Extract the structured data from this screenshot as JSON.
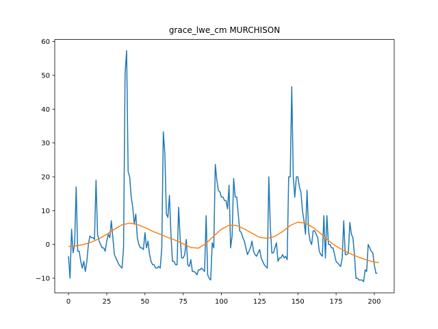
{
  "chart_data": {
    "type": "line",
    "title": "grace_lwe_cm MURCHISON",
    "xlabel": "",
    "ylabel": "",
    "xlim": [
      -9,
      213
    ],
    "ylim": [
      -14.3,
      60.6
    ],
    "x_ticks": [
      0,
      25,
      50,
      75,
      100,
      125,
      150,
      175,
      200
    ],
    "y_ticks": [
      -10,
      0,
      10,
      20,
      30,
      40,
      50,
      60
    ],
    "grid": false,
    "legend": "none",
    "series": [
      {
        "color": "#1f77b4",
        "points": [
          [
            0,
            -3.5
          ],
          [
            1,
            -10
          ],
          [
            2,
            4.5
          ],
          [
            3,
            -2.5
          ],
          [
            4,
            0
          ],
          [
            5,
            17
          ],
          [
            6,
            -2
          ],
          [
            7,
            -2
          ],
          [
            8,
            -5
          ],
          [
            9,
            -7
          ],
          [
            10,
            -5
          ],
          [
            11,
            -8
          ],
          [
            12,
            -5
          ],
          [
            13,
            0
          ],
          [
            14,
            2.5
          ],
          [
            15,
            2
          ],
          [
            16,
            2
          ],
          [
            17,
            1.5
          ],
          [
            18,
            19
          ],
          [
            19,
            3
          ],
          [
            20,
            1
          ],
          [
            21,
            0
          ],
          [
            22,
            -1
          ],
          [
            23,
            -1
          ],
          [
            24,
            -2
          ],
          [
            25,
            1
          ],
          [
            26,
            3
          ],
          [
            27,
            2
          ],
          [
            28,
            7
          ],
          [
            29,
            2
          ],
          [
            30,
            -3
          ],
          [
            31,
            -4
          ],
          [
            32,
            -5
          ],
          [
            33,
            -6
          ],
          [
            34,
            -6.5
          ],
          [
            35,
            -7
          ],
          [
            36,
            -1
          ],
          [
            37,
            50.5
          ],
          [
            38,
            57.3
          ],
          [
            39,
            21.5
          ],
          [
            40,
            20
          ],
          [
            41,
            14
          ],
          [
            42,
            11
          ],
          [
            43,
            6
          ],
          [
            44,
            9
          ],
          [
            45,
            2
          ],
          [
            46,
            0
          ],
          [
            47,
            -1
          ],
          [
            48,
            -1
          ],
          [
            49,
            -1.5
          ],
          [
            50,
            3.5
          ],
          [
            51,
            -1
          ],
          [
            52,
            1
          ],
          [
            53,
            -3
          ],
          [
            54,
            -5
          ],
          [
            55,
            -6
          ],
          [
            56,
            -6
          ],
          [
            57,
            -7
          ],
          [
            58,
            -7
          ],
          [
            59,
            -6.5
          ],
          [
            60,
            -7
          ],
          [
            61,
            -1
          ],
          [
            62,
            33.3
          ],
          [
            63,
            27
          ],
          [
            64,
            9
          ],
          [
            65,
            8
          ],
          [
            66,
            14.5
          ],
          [
            67,
            3
          ],
          [
            68,
            -5
          ],
          [
            69,
            -5
          ],
          [
            70,
            -6
          ],
          [
            71,
            -6
          ],
          [
            72,
            11
          ],
          [
            73,
            2
          ],
          [
            74,
            -4
          ],
          [
            75,
            -4
          ],
          [
            76,
            -3
          ],
          [
            77,
            1.5
          ],
          [
            78,
            -6
          ],
          [
            79,
            -6.5
          ],
          [
            80,
            -4.5
          ],
          [
            81,
            -8
          ],
          [
            82,
            -8
          ],
          [
            83,
            -8.3
          ],
          [
            84,
            -9
          ],
          [
            85,
            -7.5
          ],
          [
            86,
            -7.5
          ],
          [
            87,
            -7
          ],
          [
            88,
            -7.5
          ],
          [
            89,
            -8
          ],
          [
            90,
            8.5
          ],
          [
            91,
            -9
          ],
          [
            92,
            -10
          ],
          [
            93,
            -10.5
          ],
          [
            94,
            0.5
          ],
          [
            95,
            -1
          ],
          [
            96,
            23.7
          ],
          [
            97,
            19
          ],
          [
            98,
            16
          ],
          [
            99,
            15.5
          ],
          [
            100,
            14
          ],
          [
            101,
            14
          ],
          [
            102,
            13
          ],
          [
            103,
            13
          ],
          [
            104,
            10.5
          ],
          [
            105,
            17.5
          ],
          [
            106,
            -1
          ],
          [
            107,
            2.5
          ],
          [
            108,
            19.5
          ],
          [
            109,
            14
          ],
          [
            110,
            14
          ],
          [
            111,
            9
          ],
          [
            112,
            4
          ],
          [
            113,
            3.5
          ],
          [
            114,
            2
          ],
          [
            115,
            1
          ],
          [
            116,
            -1
          ],
          [
            117,
            -3
          ],
          [
            118,
            -2
          ],
          [
            119,
            -1
          ],
          [
            120,
            1
          ],
          [
            121,
            -2
          ],
          [
            122,
            -3
          ],
          [
            123,
            -3.5
          ],
          [
            124,
            -2.5
          ],
          [
            125,
            -1.5
          ],
          [
            126,
            -4
          ],
          [
            127,
            -5
          ],
          [
            128,
            -6
          ],
          [
            129,
            -6.5
          ],
          [
            130,
            -7
          ],
          [
            131,
            20
          ],
          [
            132,
            5
          ],
          [
            133,
            -2.5
          ],
          [
            134,
            -2.5
          ],
          [
            135,
            -1
          ],
          [
            136,
            0.5
          ],
          [
            137,
            -5
          ],
          [
            138,
            -4
          ],
          [
            139,
            -4
          ],
          [
            140,
            -3
          ],
          [
            141,
            -4
          ],
          [
            142,
            -3.5
          ],
          [
            143,
            -4.5
          ],
          [
            144,
            20
          ],
          [
            145,
            20
          ],
          [
            146,
            46.6
          ],
          [
            147,
            20
          ],
          [
            148,
            14
          ],
          [
            149,
            20
          ],
          [
            150,
            20
          ],
          [
            151,
            17
          ],
          [
            152,
            15.5
          ],
          [
            153,
            10
          ],
          [
            154,
            7
          ],
          [
            155,
            3
          ],
          [
            156,
            16
          ],
          [
            157,
            4
          ],
          [
            158,
            1
          ],
          [
            159,
            0
          ],
          [
            160,
            4
          ],
          [
            161,
            4
          ],
          [
            162,
            3
          ],
          [
            163,
            2
          ],
          [
            164,
            -2
          ],
          [
            165,
            -3
          ],
          [
            166,
            -3.5
          ],
          [
            167,
            8.5
          ],
          [
            168,
            -4
          ],
          [
            169,
            8.5
          ],
          [
            170,
            0
          ],
          [
            171,
            0
          ],
          [
            172,
            -1
          ],
          [
            173,
            -1
          ],
          [
            174,
            -3
          ],
          [
            175,
            -5
          ],
          [
            176,
            -5.5
          ],
          [
            177,
            -6
          ],
          [
            178,
            -6.5
          ],
          [
            179,
            -4
          ],
          [
            180,
            7
          ],
          [
            181,
            -3
          ],
          [
            182,
            -3
          ],
          [
            183,
            -2.5
          ],
          [
            184,
            6.5
          ],
          [
            185,
            3
          ],
          [
            186,
            2
          ],
          [
            187,
            -3
          ],
          [
            188,
            -10
          ],
          [
            189,
            -10
          ],
          [
            190,
            -10.5
          ],
          [
            191,
            -10.5
          ],
          [
            192,
            -10.5
          ],
          [
            193,
            -11
          ],
          [
            194,
            -7.5
          ],
          [
            195,
            -8
          ],
          [
            196,
            0
          ],
          [
            197,
            -1
          ],
          [
            198,
            -2
          ],
          [
            199,
            -2.5
          ],
          [
            200,
            -6
          ],
          [
            201,
            -8.5
          ],
          [
            202,
            -8.5
          ]
        ]
      },
      {
        "color": "#ff7f0e",
        "points": [
          [
            0,
            -0.6
          ],
          [
            5,
            -0.4
          ],
          [
            10,
            0
          ],
          [
            15,
            0.7
          ],
          [
            20,
            1.7
          ],
          [
            25,
            3
          ],
          [
            30,
            4.5
          ],
          [
            35,
            5.8
          ],
          [
            40,
            6.3
          ],
          [
            45,
            5.9
          ],
          [
            50,
            5
          ],
          [
            55,
            3.9
          ],
          [
            60,
            3
          ],
          [
            65,
            2.1
          ],
          [
            70,
            1.2
          ],
          [
            75,
            0.2
          ],
          [
            80,
            -0.9
          ],
          [
            85,
            -1.1
          ],
          [
            90,
            0.3
          ],
          [
            95,
            2.5
          ],
          [
            100,
            4.5
          ],
          [
            105,
            5.7
          ],
          [
            110,
            5.6
          ],
          [
            115,
            4.6
          ],
          [
            120,
            3.3
          ],
          [
            125,
            2.1
          ],
          [
            130,
            1.8
          ],
          [
            135,
            2.4
          ],
          [
            140,
            3.8
          ],
          [
            145,
            5.6
          ],
          [
            150,
            6.6
          ],
          [
            155,
            6.3
          ],
          [
            160,
            5
          ],
          [
            165,
            3.2
          ],
          [
            170,
            1.1
          ],
          [
            175,
            -0.5
          ],
          [
            180,
            -1.8
          ],
          [
            185,
            -2.9
          ],
          [
            190,
            -3.8
          ],
          [
            195,
            -4.6
          ],
          [
            200,
            -5.2
          ],
          [
            203,
            -5.4
          ]
        ]
      }
    ]
  }
}
